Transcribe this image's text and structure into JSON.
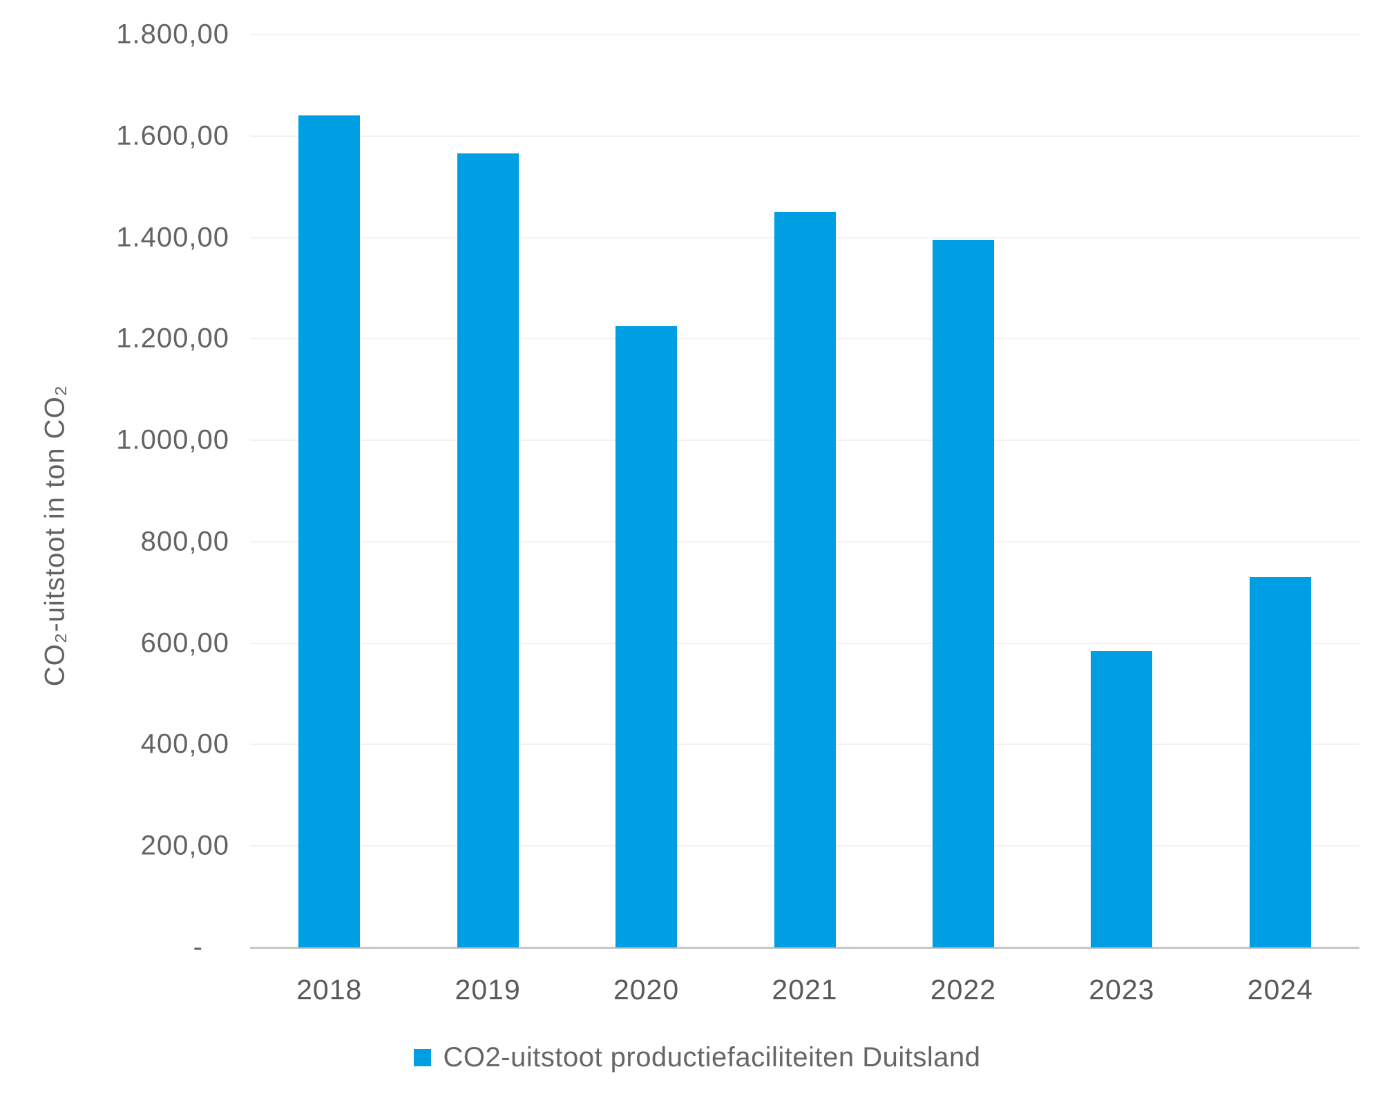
{
  "chart_data": {
    "type": "bar",
    "title": "",
    "categories": [
      "2018",
      "2019",
      "2020",
      "2021",
      "2022",
      "2023",
      "2024"
    ],
    "series": [
      {
        "name": "CO2-uitstoot productiefaciliteiten Duitsland",
        "values": [
          1640,
          1565,
          1225,
          1450,
          1395,
          585,
          730
        ]
      }
    ],
    "xlabel": "",
    "ylabel": "CO₂-uitstoot in ton CO₂",
    "ylim": [
      0,
      1800
    ],
    "y_tick_step": 200,
    "y_tick_labels": [
      "-",
      "200,00",
      "400,00",
      "600,00",
      "800,00",
      "1.000,00",
      "1.200,00",
      "1.400,00",
      "1.600,00",
      "1.800,00"
    ],
    "grid": true,
    "legend_position": "bottom",
    "bar_color": "#009FE3"
  },
  "axes": {
    "y_title": "CO₂-uitstoot in ton CO₂"
  },
  "legend": {
    "label": "CO2-uitstoot productiefaciliteiten Duitsland",
    "marker_color": "#009FE3"
  },
  "colors": {
    "bar": "#009FE3",
    "gridline": "#F2F2F2",
    "axis_line": "#C6C6C6",
    "tick_text": "#636363",
    "label_text": "#595959"
  }
}
